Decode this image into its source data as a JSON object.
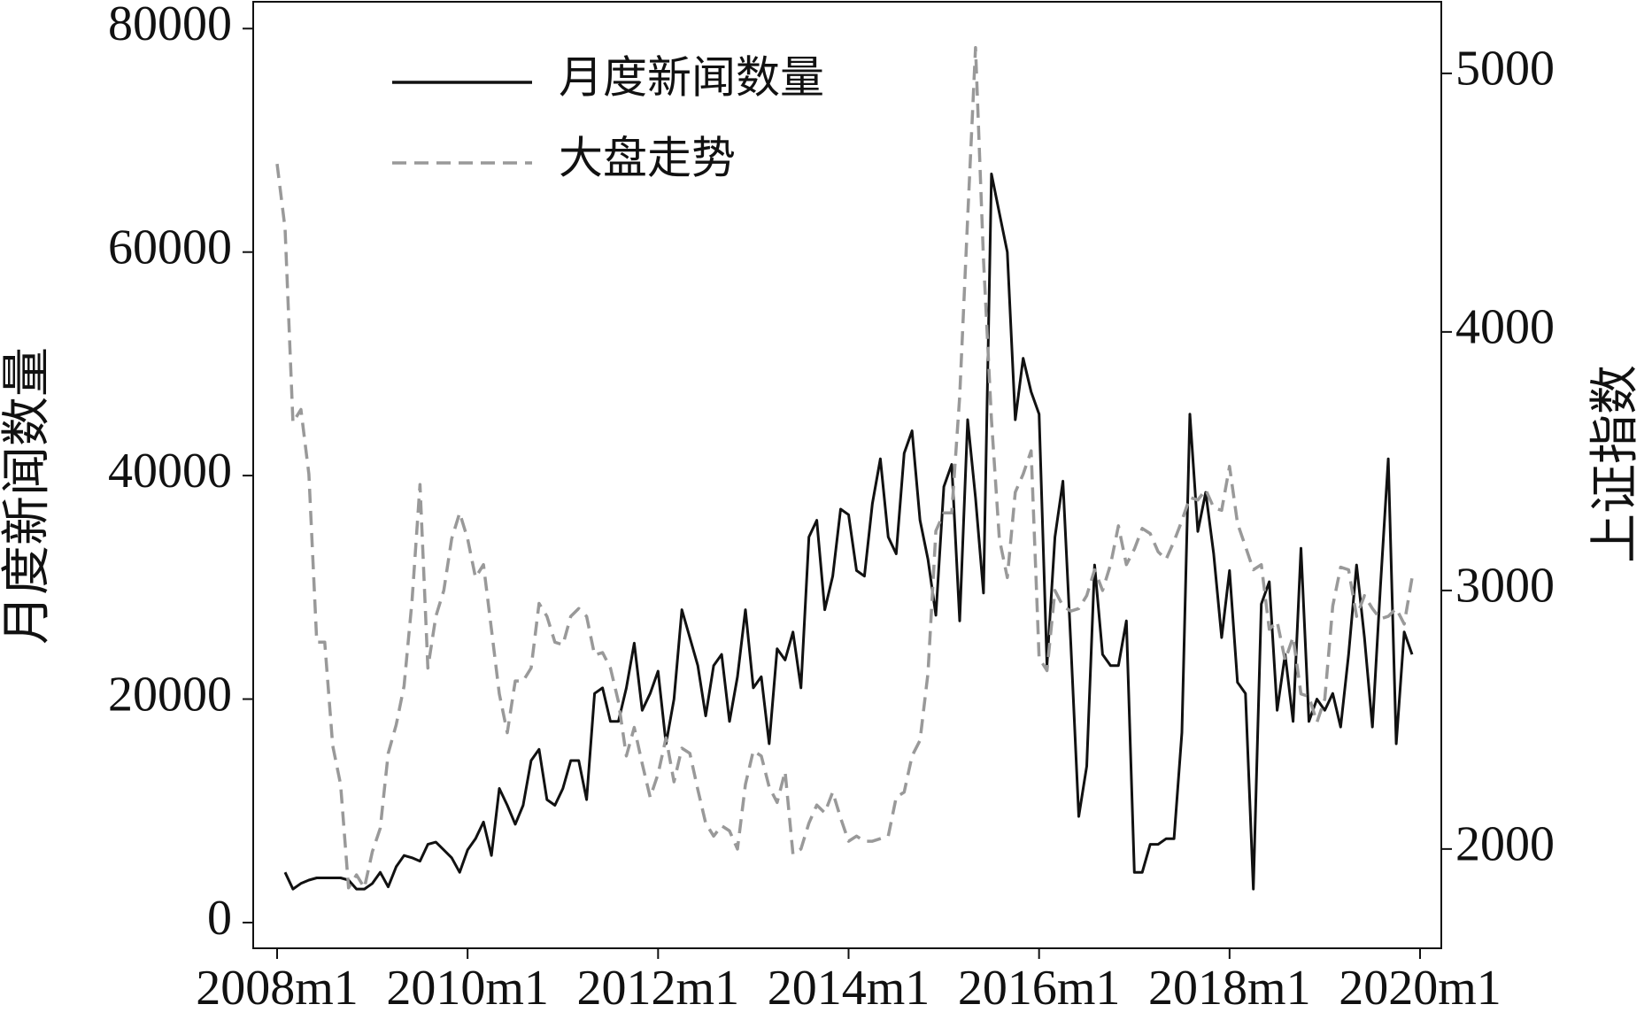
{
  "chart_data": {
    "type": "line",
    "y_label": "月度新闻数量",
    "y2_label": "上证指数",
    "x": [
      "2008m1",
      "2008m2",
      "2008m3",
      "2008m4",
      "2008m5",
      "2008m6",
      "2008m7",
      "2008m8",
      "2008m9",
      "2008m10",
      "2008m11",
      "2008m12",
      "2009m1",
      "2009m2",
      "2009m3",
      "2009m4",
      "2009m5",
      "2009m6",
      "2009m7",
      "2009m8",
      "2009m9",
      "2009m10",
      "2009m11",
      "2009m12",
      "2010m1",
      "2010m2",
      "2010m3",
      "2010m4",
      "2010m5",
      "2010m6",
      "2010m7",
      "2010m8",
      "2010m9",
      "2010m10",
      "2010m11",
      "2010m12",
      "2011m1",
      "2011m2",
      "2011m3",
      "2011m4",
      "2011m5",
      "2011m6",
      "2011m7",
      "2011m8",
      "2011m9",
      "2011m10",
      "2011m11",
      "2011m12",
      "2012m1",
      "2012m2",
      "2012m3",
      "2012m4",
      "2012m5",
      "2012m6",
      "2012m7",
      "2012m8",
      "2012m9",
      "2012m10",
      "2012m11",
      "2012m12",
      "2013m1",
      "2013m2",
      "2013m3",
      "2013m4",
      "2013m5",
      "2013m6",
      "2013m7",
      "2013m8",
      "2013m9",
      "2013m10",
      "2013m11",
      "2013m12",
      "2014m1",
      "2014m2",
      "2014m3",
      "2014m4",
      "2014m5",
      "2014m6",
      "2014m7",
      "2014m8",
      "2014m9",
      "2014m10",
      "2014m11",
      "2014m12",
      "2015m1",
      "2015m2",
      "2015m3",
      "2015m4",
      "2015m5",
      "2015m6",
      "2015m7",
      "2015m8",
      "2015m9",
      "2015m10",
      "2015m11",
      "2015m12",
      "2016m1",
      "2016m2",
      "2016m3",
      "2016m4",
      "2016m5",
      "2016m6",
      "2016m7",
      "2016m8",
      "2016m9",
      "2016m10",
      "2016m11",
      "2016m12",
      "2017m1",
      "2017m2",
      "2017m3",
      "2017m4",
      "2017m5",
      "2017m6",
      "2017m7",
      "2017m8",
      "2017m9",
      "2017m10",
      "2017m11",
      "2017m12",
      "2018m1",
      "2018m2",
      "2018m3",
      "2018m4",
      "2018m5",
      "2018m6",
      "2018m7",
      "2018m8",
      "2018m9",
      "2018m10",
      "2018m11",
      "2018m12",
      "2019m1",
      "2019m2",
      "2019m3",
      "2019m4",
      "2019m5",
      "2019m6",
      "2019m7",
      "2019m8",
      "2019m9",
      "2019m10",
      "2019m11",
      "2019m12"
    ],
    "series": [
      {
        "name": "月度新闻数量",
        "color": "#111111",
        "dashed": false,
        "values": [
          null,
          4500,
          3000,
          3500,
          3800,
          4000,
          4000,
          4000,
          4000,
          3800,
          3000,
          3000,
          3500,
          4500,
          3200,
          5000,
          6000,
          5800,
          5500,
          7000,
          7200,
          6500,
          5800,
          4500,
          6500,
          7500,
          9000,
          6000,
          12000,
          10500,
          8800,
          10500,
          14500,
          15500,
          11000,
          10500,
          12000,
          14500,
          14500,
          11000,
          20500,
          21000,
          18000,
          18000,
          21000,
          25000,
          19000,
          20500,
          22500,
          16000,
          20000,
          28000,
          25500,
          23000,
          18500,
          23000,
          24000,
          18000,
          22000,
          28000,
          21000,
          22000,
          16000,
          24500,
          23500,
          26000,
          21000,
          34500,
          36000,
          28000,
          31000,
          37000,
          36500,
          31500,
          31000,
          37500,
          41500,
          34500,
          33000,
          42000,
          44000,
          36000,
          32500,
          27500,
          39000,
          41000,
          27000,
          45000,
          38000,
          29500,
          67000,
          63500,
          60000,
          45000,
          50500,
          47500,
          45500,
          23000,
          34500,
          39500,
          25000,
          9500,
          14000,
          32000,
          24000,
          23000,
          23000,
          27000,
          4500,
          4500,
          7000,
          7000,
          7500,
          7500,
          17000,
          45500,
          35000,
          38500,
          33000,
          25500,
          31500,
          21500,
          20500,
          3000,
          28500,
          30500,
          19000,
          24000,
          18000,
          33500,
          18000,
          20000,
          19000,
          20500,
          17500,
          24000,
          32000,
          25500,
          17500,
          30000,
          41500,
          16000,
          26000,
          24000
        ]
      },
      {
        "name": "大盘走势",
        "color": "#999999",
        "dashed": true,
        "axis": "y2",
        "values": [
          4650,
          4400,
          3650,
          3700,
          3450,
          2800,
          2800,
          2400,
          2250,
          1850,
          1900,
          1850,
          1990,
          2080,
          2370,
          2480,
          2630,
          2960,
          3410,
          2700,
          2900,
          3000,
          3200,
          3300,
          3200,
          3050,
          3100,
          2850,
          2600,
          2450,
          2650,
          2650,
          2700,
          2950,
          2900,
          2800,
          2790,
          2900,
          2930,
          2900,
          2750,
          2760,
          2700,
          2570,
          2360,
          2470,
          2330,
          2200,
          2290,
          2430,
          2260,
          2390,
          2370,
          2230,
          2100,
          2050,
          2090,
          2070,
          2000,
          2250,
          2380,
          2360,
          2240,
          2180,
          2300,
          1980,
          2000,
          2100,
          2170,
          2140,
          2220,
          2120,
          2030,
          2050,
          2030,
          2030,
          2040,
          2050,
          2200,
          2220,
          2360,
          2420,
          2680,
          3230,
          3300,
          3300,
          3750,
          4440,
          5100,
          4280,
          3660,
          3200,
          3050,
          3380,
          3450,
          3540,
          2740,
          2690,
          3000,
          2940,
          2920,
          2930,
          2980,
          3080,
          3000,
          3100,
          3250,
          3100,
          3160,
          3240,
          3220,
          3150,
          3120,
          3190,
          3270,
          3360,
          3350,
          3390,
          3320,
          3310,
          3480,
          3260,
          3170,
          3080,
          3100,
          2850,
          2880,
          2730,
          2820,
          2600,
          2590,
          2490,
          2580,
          2940,
          3090,
          3080,
          2900,
          2980,
          2930,
          2890,
          2900,
          2930,
          2870,
          3050
        ]
      }
    ],
    "xlim": [
      "2008m1",
      "2020m1"
    ],
    "xticks": [
      "2008m1",
      "2010m1",
      "2012m1",
      "2014m1",
      "2016m1",
      "2018m1",
      "2020m1"
    ],
    "ylim": [
      -2300,
      82400
    ],
    "yticks": [
      0,
      20000,
      40000,
      60000,
      80000
    ],
    "y2lim": [
      1616,
      5277
    ],
    "y2ticks": [
      2000,
      3000,
      4000,
      5000
    ],
    "legend": "upper-left"
  }
}
